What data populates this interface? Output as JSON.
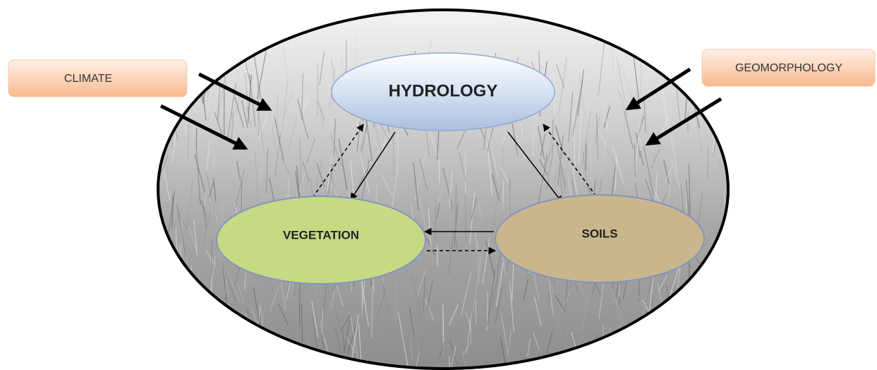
{
  "nodes": [
    {
      "label": "CLIMATE"
    },
    {
      "label": "GEOMORPHOLOGY"
    },
    {
      "label": "HYDROLOGY"
    },
    {
      "label": "VEGETATION"
    },
    {
      "label": "SOILS"
    }
  ]
}
